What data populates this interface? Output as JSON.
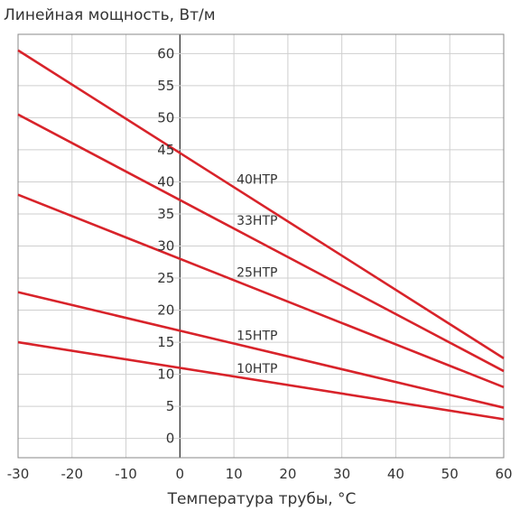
{
  "chart_data": {
    "type": "line",
    "ylabel": "Линейная мощность, Вт/м",
    "xlabel": "Температура трубы, °C",
    "xlim": [
      -30,
      60
    ],
    "ylim": [
      -3,
      63
    ],
    "x_ticks": [
      -30,
      -20,
      -10,
      0,
      10,
      20,
      30,
      40,
      50,
      60
    ],
    "y_ticks": [
      0,
      5,
      10,
      15,
      20,
      25,
      30,
      35,
      40,
      45,
      50,
      55,
      60
    ],
    "grid": true,
    "line_color": "#d8232a",
    "series": [
      {
        "name": "40HTP",
        "x": [
          -30,
          60
        ],
        "y": [
          60.5,
          12.5
        ],
        "label_at_x": 10
      },
      {
        "name": "33HTP",
        "x": [
          -30,
          60
        ],
        "y": [
          50.5,
          10.5
        ],
        "label_at_x": 10
      },
      {
        "name": "25HTP",
        "x": [
          -30,
          60
        ],
        "y": [
          38.0,
          8.0
        ],
        "label_at_x": 10
      },
      {
        "name": "15HTP",
        "x": [
          -30,
          60
        ],
        "y": [
          22.8,
          4.8
        ],
        "label_at_x": 10
      },
      {
        "name": "10HTP",
        "x": [
          -30,
          60
        ],
        "y": [
          15.0,
          3.0
        ],
        "label_at_x": 10
      }
    ]
  }
}
